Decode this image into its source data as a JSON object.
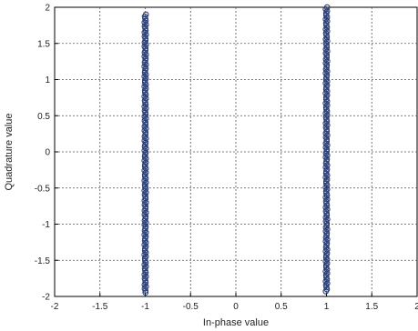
{
  "chart_data": {
    "type": "scatter",
    "title": "",
    "xlabel": "In-phase value",
    "ylabel": "Quadrature value",
    "xlim": [
      -2,
      2
    ],
    "ylim": [
      -2,
      2
    ],
    "xticks": [
      "-2",
      "-1.5",
      "-1",
      "-0.5",
      "0",
      "0.5",
      "1",
      "1.5",
      "2"
    ],
    "yticks": [
      "-2",
      "-1.5",
      "-1",
      "-0.5",
      "0",
      "0.5",
      "1",
      "1.5",
      "2"
    ],
    "grid": true,
    "marker": "circle",
    "marker_color": "#2b3f78",
    "clusters": [
      {
        "x": -1,
        "y_min": -1.95,
        "y_max": 1.9
      },
      {
        "x": 1,
        "y_min": -1.95,
        "y_max": 2.0
      }
    ]
  }
}
